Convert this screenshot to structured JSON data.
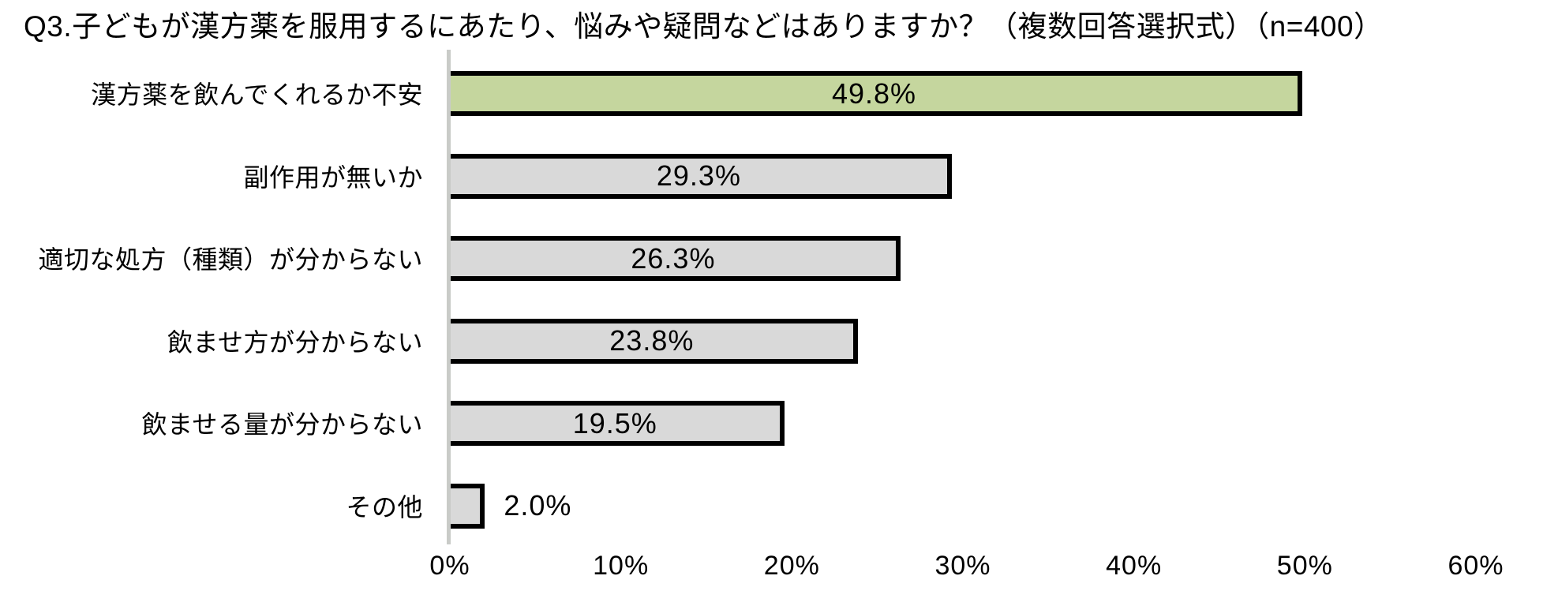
{
  "title": "Q3.子どもが漢方薬を服用するにあたり、悩みや疑問などはありますか？（複数回答選択式）（n=400）",
  "chart_data": {
    "type": "bar",
    "orientation": "horizontal",
    "title": "Q3.子どもが漢方薬を服用するにあたり、悩みや疑問などはありますか？（複数回答選択式）（n=400）",
    "categories": [
      "漢方薬を飲んでくれるか不安",
      "副作用が無いか",
      "適切な処方（種類）が分からない",
      "飲ませ方が分からない",
      "飲ませる量が分からない",
      "その他"
    ],
    "values": [
      49.8,
      29.3,
      26.3,
      23.8,
      19.5,
      2.0
    ],
    "value_labels": [
      "49.8%",
      "29.3%",
      "26.3%",
      "23.8%",
      "19.5%",
      "2.0%"
    ],
    "bar_colors": [
      "#c5d69e",
      "#d9d9d9",
      "#d9d9d9",
      "#d9d9d9",
      "#d9d9d9",
      "#d9d9d9"
    ],
    "bar_border_color": "#000000",
    "axis_line_color": "#c9cbc8",
    "xlabel": "",
    "ylabel": "",
    "xlim": [
      0,
      60
    ],
    "x_ticks": [
      "0%",
      "10%",
      "20%",
      "30%",
      "40%",
      "50%",
      "60%"
    ],
    "x_tick_values": [
      0,
      10,
      20,
      30,
      40,
      50,
      60
    ],
    "grid": false,
    "legend_position": "none",
    "background": "#ffffff"
  }
}
